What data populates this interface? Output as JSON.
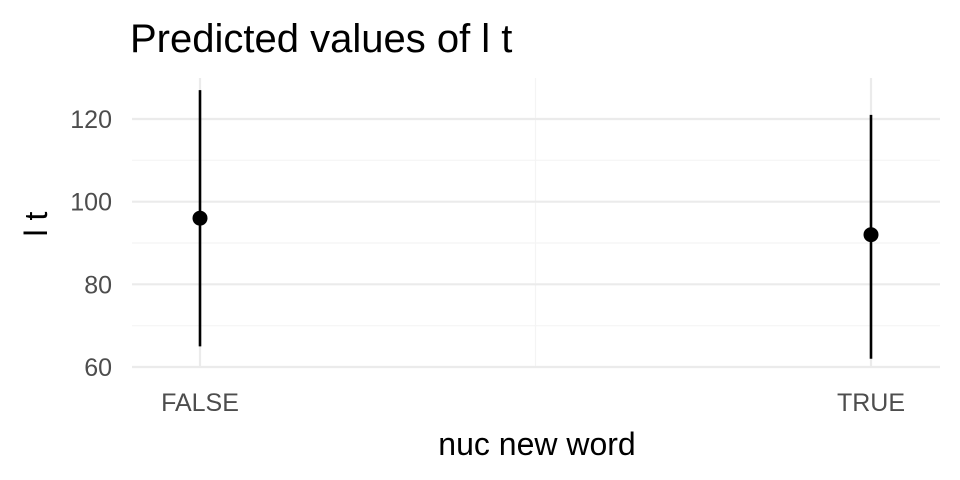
{
  "chart_data": {
    "type": "scatter",
    "title": "Predicted values of l t",
    "xlabel": "nuc new word",
    "ylabel": "l t",
    "categories": [
      "FALSE",
      "TRUE"
    ],
    "series": [
      {
        "values": [
          96,
          92
        ],
        "ci_low": [
          65,
          62
        ],
        "ci_high": [
          127,
          121
        ]
      }
    ],
    "ylim": [
      60,
      130
    ],
    "yticks": [
      60,
      80,
      100,
      120
    ],
    "grid": true,
    "legend": "none",
    "colors": {
      "points": "#000000",
      "grid": "#ebebeb",
      "text": "#000000",
      "ticks": "#4d4d4d"
    }
  }
}
